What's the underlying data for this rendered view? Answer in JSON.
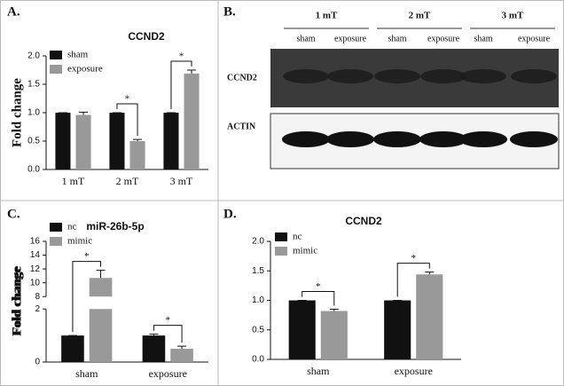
{
  "panels": [
    "A.",
    "B.",
    "C.",
    "D."
  ],
  "blot": {
    "groups": [
      "1 mT",
      "2 mT",
      "3 mT"
    ],
    "lanes": [
      "sham",
      "exposure",
      "sham",
      "exposure",
      "sham",
      "exposure"
    ],
    "rows": [
      "CCND2",
      "ACTIN"
    ]
  },
  "chart_data": [
    {
      "type": "bar",
      "title": "CCND2",
      "y_label": "Fold change",
      "categories": [
        "1 mT",
        "2 mT",
        "3 mT"
      ],
      "series": [
        {
          "name": "sham",
          "color": "#111111",
          "values": [
            1,
            1,
            1
          ],
          "errors": [
            0,
            0,
            0
          ]
        },
        {
          "name": "exposure",
          "color": "#999999",
          "values": [
            0.96,
            0.5,
            1.69
          ],
          "errors": [
            0.05,
            0.03,
            0.06
          ]
        }
      ],
      "significance": [
        null,
        "*",
        "*"
      ],
      "ylim": [
        0,
        2.0
      ],
      "yticks": [
        {
          "value": 0,
          "label": "0.0"
        },
        0.5,
        {
          "value": 1,
          "label": "1.0"
        },
        1.5,
        {
          "value": 2,
          "label": "2.0"
        }
      ]
    },
    {
      "type": "bar",
      "title": "miR-26b-5p",
      "y_label": "Fold change",
      "categories": [
        "sham",
        "exposure"
      ],
      "series": [
        {
          "name": "nc",
          "color": "#111111",
          "values": [
            1,
            1
          ],
          "errors": [
            0,
            0.05
          ]
        },
        {
          "name": "mimic",
          "color": "#999999",
          "values": [
            10.7,
            0.5
          ],
          "errors": [
            1.1,
            0.1
          ]
        }
      ],
      "significance": [
        "*",
        "*"
      ],
      "ylim": [
        0,
        16
      ],
      "ybreak": [
        2,
        8
      ],
      "yticks": [
        0,
        2,
        8,
        10,
        12,
        14,
        16
      ]
    },
    {
      "type": "bar",
      "title": "CCND2",
      "y_label": "Fold change",
      "categories": [
        "sham",
        "exposure"
      ],
      "series": [
        {
          "name": "nc",
          "color": "#111111",
          "values": [
            1,
            1
          ],
          "errors": [
            0,
            0
          ]
        },
        {
          "name": "mimic",
          "color": "#999999",
          "values": [
            0.82,
            1.44
          ],
          "errors": [
            0.03,
            0.04
          ]
        }
      ],
      "significance": [
        "*",
        "*"
      ],
      "ylim": [
        0,
        2.0
      ],
      "yticks": [
        {
          "value": 0,
          "label": "0.0"
        },
        0.5,
        {
          "value": 1,
          "label": "1.0"
        },
        1.5,
        {
          "value": 2,
          "label": "2.0"
        }
      ]
    }
  ]
}
